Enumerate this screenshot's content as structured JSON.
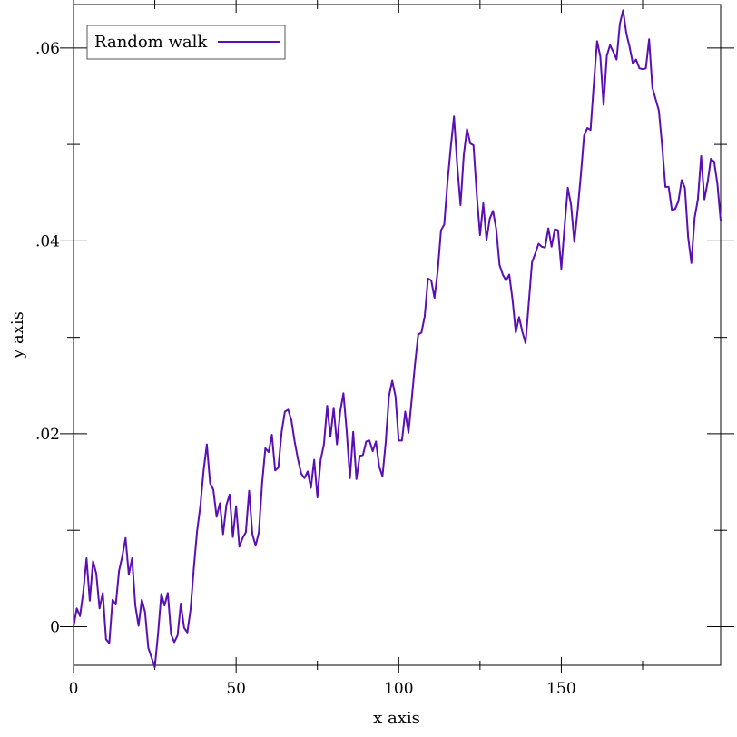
{
  "chart_data": {
    "type": "line",
    "xlabel": "x axis",
    "ylabel": "y axis",
    "xlim": [
      0,
      199
    ],
    "ylim": [
      -0.004,
      0.0645
    ],
    "x_ticks": [
      0,
      50,
      100,
      150
    ],
    "x_tick_labels": [
      "0",
      "50",
      "100",
      "150"
    ],
    "y_ticks": [
      0,
      0.02,
      0.04,
      0.06
    ],
    "y_tick_labels": [
      "0",
      ".02",
      ".04",
      ".06"
    ],
    "grid": false,
    "legend_position": "top-left",
    "series": [
      {
        "name": "Random walk",
        "color": "#5a0fb4",
        "x": [
          0,
          1,
          2,
          3,
          4,
          5,
          6,
          7,
          8,
          9,
          10,
          11,
          12,
          13,
          14,
          15,
          16,
          17,
          18,
          19,
          20,
          21,
          22,
          23,
          24,
          25,
          26,
          27,
          28,
          29,
          30,
          31,
          32,
          33,
          34,
          35,
          36,
          37,
          38,
          39,
          40,
          41,
          42,
          43,
          44,
          45,
          46,
          47,
          48,
          49,
          50,
          51,
          52,
          53,
          54,
          55,
          56,
          57,
          58,
          59,
          60,
          61,
          62,
          63,
          64,
          65,
          66,
          67,
          68,
          69,
          70,
          71,
          72,
          73,
          74,
          75,
          76,
          77,
          78,
          79,
          80,
          81,
          82,
          83,
          84,
          85,
          86,
          87,
          88,
          89,
          90,
          91,
          92,
          93,
          94,
          95,
          96,
          97,
          98,
          99,
          100,
          101,
          102,
          103,
          104,
          105,
          106,
          107,
          108,
          109,
          110,
          111,
          112,
          113,
          114,
          115,
          116,
          117,
          118,
          119,
          120,
          121,
          122,
          123,
          124,
          125,
          126,
          127,
          128,
          129,
          130,
          131,
          132,
          133,
          134,
          135,
          136,
          137,
          138,
          139,
          140,
          141,
          142,
          143,
          144,
          145,
          146,
          147,
          148,
          149,
          150,
          151,
          152,
          153,
          154,
          155,
          156,
          157,
          158,
          159,
          160,
          161,
          162,
          163,
          164,
          165,
          166,
          167,
          168,
          169,
          170,
          171,
          172,
          173,
          174,
          175,
          176,
          177,
          178,
          179,
          180,
          181,
          182,
          183,
          184,
          185,
          186,
          187,
          188,
          189,
          190,
          191,
          192,
          193,
          194,
          195,
          196,
          197,
          198,
          199
        ],
        "values": [
          0,
          0.0019,
          0.0011,
          0.0036,
          0.0071,
          0.0027,
          0.0068,
          0.0055,
          0.0019,
          0.0035,
          -0.0013,
          -0.0017,
          0.0028,
          0.0023,
          0.0058,
          0.0073,
          0.0092,
          0.0054,
          0.0071,
          0.0022,
          0.0001,
          0.0028,
          0.0015,
          -0.0022,
          -0.0032,
          -0.0042,
          -0.0007,
          0.0034,
          0.0022,
          0.0035,
          -0.0008,
          -0.0016,
          -0.0009,
          0.0024,
          -0.0001,
          -0.0006,
          0.0018,
          0.0061,
          0.0099,
          0.0125,
          0.0162,
          0.0189,
          0.0149,
          0.0142,
          0.0114,
          0.0128,
          0.0096,
          0.0126,
          0.0137,
          0.0093,
          0.0125,
          0.0083,
          0.0092,
          0.0098,
          0.0141,
          0.0096,
          0.0084,
          0.0098,
          0.0149,
          0.0185,
          0.0181,
          0.0199,
          0.0162,
          0.0165,
          0.0202,
          0.0223,
          0.0225,
          0.0214,
          0.0192,
          0.0174,
          0.0159,
          0.0154,
          0.0161,
          0.0144,
          0.0173,
          0.0134,
          0.0173,
          0.0189,
          0.0229,
          0.0197,
          0.0227,
          0.0189,
          0.0223,
          0.0242,
          0.0203,
          0.0154,
          0.0202,
          0.0153,
          0.0177,
          0.0178,
          0.0192,
          0.0193,
          0.0182,
          0.0192,
          0.0166,
          0.0156,
          0.0191,
          0.0239,
          0.0255,
          0.0239,
          0.0193,
          0.0193,
          0.0223,
          0.0201,
          0.0236,
          0.0272,
          0.0303,
          0.0305,
          0.0322,
          0.0361,
          0.0359,
          0.0341,
          0.0369,
          0.0411,
          0.0417,
          0.0461,
          0.0497,
          0.0529,
          0.0478,
          0.0437,
          0.0489,
          0.0516,
          0.0501,
          0.0499,
          0.0448,
          0.0406,
          0.0439,
          0.0401,
          0.0423,
          0.0431,
          0.0412,
          0.0375,
          0.0365,
          0.0359,
          0.0365,
          0.0339,
          0.0305,
          0.0321,
          0.0306,
          0.0294,
          0.0336,
          0.0378,
          0.0387,
          0.0397,
          0.0394,
          0.0393,
          0.0413,
          0.0394,
          0.0412,
          0.0411,
          0.0371,
          0.0415,
          0.0455,
          0.0437,
          0.0399,
          0.0431,
          0.0468,
          0.0509,
          0.0517,
          0.0515,
          0.0563,
          0.0607,
          0.0591,
          0.0541,
          0.0592,
          0.0603,
          0.0596,
          0.0588,
          0.0625,
          0.0639,
          0.0615,
          0.0601,
          0.0584,
          0.0588,
          0.0579,
          0.0578,
          0.0579,
          0.0609,
          0.0559,
          0.0547,
          0.0535,
          0.0499,
          0.0456,
          0.0456,
          0.0432,
          0.0433,
          0.0441,
          0.0463,
          0.0455,
          0.0404,
          0.0377,
          0.0424,
          0.0443,
          0.0488,
          0.0443,
          0.0461,
          0.0485,
          0.0482,
          0.0459,
          0.0421
        ]
      }
    ]
  }
}
